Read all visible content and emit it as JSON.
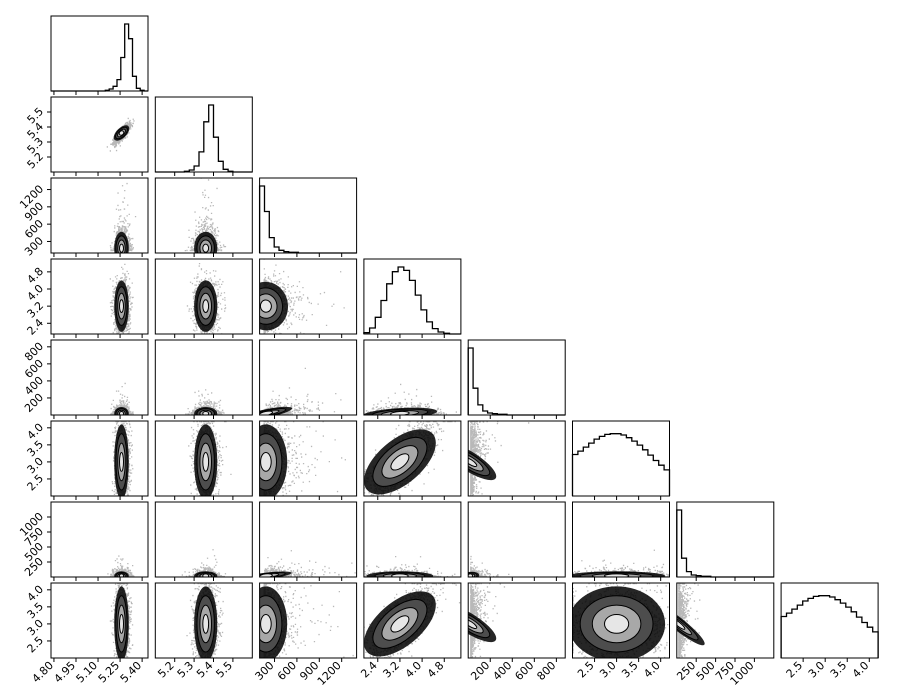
{
  "chart_data": {
    "type": "corner",
    "n_params": 8,
    "histogram_style": "step",
    "density_style": "scatter points with filled grayscale contours",
    "colors": {
      "axes": "#000000",
      "histogram": "#000000",
      "points": "#000000",
      "contour_fill_light": "#e6e6e6",
      "contour_fill_mid": "#a8a8a8",
      "contour_fill_dark": "#4d4d4d"
    },
    "params": [
      {
        "range": [
          4.78,
          5.44
        ],
        "ticks": [
          4.8,
          4.95,
          5.1,
          5.25,
          5.4
        ],
        "tick_labels": [
          "4.80",
          "4.95",
          "5.10",
          "5.25",
          "5.40"
        ],
        "mean": 5.26,
        "sd": 0.025,
        "kind": "normal"
      },
      {
        "range": [
          5.1,
          5.6
        ],
        "ticks": [
          5.2,
          5.3,
          5.4,
          5.5
        ],
        "tick_labels": [
          "5.2",
          "5.3",
          "5.4",
          "5.5"
        ],
        "mean": 5.36,
        "sd": 0.03,
        "kind": "normal"
      },
      {
        "range": [
          100,
          1400
        ],
        "ticks": [
          300,
          600,
          900,
          1200
        ],
        "tick_labels": [
          "300",
          "600",
          "900",
          "1200"
        ],
        "mean": 140,
        "sd": 50,
        "kind": "skewed"
      },
      {
        "range": [
          1.9,
          5.4
        ],
        "ticks": [
          2.4,
          3.2,
          4.0,
          4.8
        ],
        "tick_labels": [
          "2.4",
          "3.2",
          "4.0",
          "4.8"
        ],
        "mean": 3.2,
        "sd": 0.6,
        "kind": "normal"
      },
      {
        "range": [
          0,
          880
        ],
        "ticks": [
          200,
          400,
          600,
          800
        ],
        "tick_labels": [
          "200",
          "400",
          "600",
          "800"
        ],
        "mean": 30,
        "sd": 30,
        "kind": "skewed"
      },
      {
        "range": [
          2.0,
          4.2
        ],
        "ticks": [
          2.5,
          3.0,
          3.5,
          4.0
        ],
        "tick_labels": [
          "2.5",
          "3.0",
          "3.5",
          "4.0"
        ],
        "mean": 3.0,
        "sd": 0.55,
        "kind": "broad"
      },
      {
        "range": [
          0,
          1250
        ],
        "ticks": [
          250,
          500,
          750,
          1000
        ],
        "tick_labels": [
          "250",
          "500",
          "750",
          "1000"
        ],
        "mean": 30,
        "sd": 30,
        "kind": "skewed"
      },
      {
        "range": [
          2.0,
          4.2
        ],
        "ticks": [
          2.5,
          3.0,
          3.5,
          4.0
        ],
        "tick_labels": [
          "2.5",
          "3.0",
          "3.5",
          "4.0"
        ],
        "mean": 3.0,
        "sd": 0.55,
        "kind": "broad"
      }
    ],
    "histograms": [
      [
        0,
        0,
        0,
        0,
        0,
        0,
        0,
        0,
        0,
        0,
        0,
        0,
        0,
        0,
        1,
        3,
        7,
        17,
        50,
        100,
        78,
        22,
        4,
        1,
        0
      ],
      [
        0,
        0,
        0,
        0,
        0,
        0,
        1,
        3,
        9,
        30,
        75,
        100,
        52,
        16,
        4,
        1,
        0,
        0,
        0,
        0
      ],
      [
        100,
        62,
        23,
        9,
        4,
        2,
        1,
        1,
        0,
        0,
        0,
        0,
        0,
        0,
        0,
        0,
        0,
        0,
        0,
        0
      ],
      [
        2,
        9,
        25,
        50,
        75,
        93,
        100,
        95,
        80,
        58,
        36,
        18,
        8,
        3,
        1,
        0,
        0
      ],
      [
        100,
        40,
        15,
        6,
        3,
        2,
        1,
        1,
        0,
        0,
        0,
        0,
        0,
        0,
        0,
        0,
        0,
        0,
        0,
        0
      ],
      [
        62,
        67,
        73,
        79,
        85,
        89,
        92,
        93,
        93,
        91,
        87,
        82,
        76,
        69,
        61,
        53,
        46,
        39
      ],
      [
        100,
        28,
        8,
        3,
        2,
        1,
        1,
        0,
        0,
        0,
        0,
        0,
        0,
        0,
        0,
        0,
        0,
        0,
        0,
        0
      ],
      [
        62,
        67,
        73,
        79,
        85,
        89,
        92,
        93,
        93,
        91,
        87,
        82,
        76,
        69,
        61,
        53,
        46,
        39
      ]
    ],
    "correlations": [
      {
        "i": 1,
        "j": 0,
        "rho": 0.8
      },
      {
        "i": 5,
        "j": 3,
        "rho": 0.75
      },
      {
        "i": 7,
        "j": 3,
        "rho": 0.75
      },
      {
        "i": 4,
        "j": 2,
        "rho": 0.65
      },
      {
        "i": 6,
        "j": 2,
        "rho": 0.55
      },
      {
        "i": 4,
        "j": 3,
        "rho": 0.3
      },
      {
        "i": 5,
        "j": 4,
        "rho": 0.35
      },
      {
        "i": 7,
        "j": 4,
        "rho": 0.35
      },
      {
        "i": 7,
        "j": 6,
        "rho": 0.2
      },
      {
        "i": 3,
        "j": 2,
        "rho": 0.1
      },
      {
        "i": 6,
        "j": 4,
        "rho": 0.2
      },
      {
        "i": 7,
        "j": 5,
        "rho": 0.0
      }
    ],
    "xlabel": "",
    "ylabel": "",
    "title": "",
    "legend": "none",
    "grid": false
  }
}
